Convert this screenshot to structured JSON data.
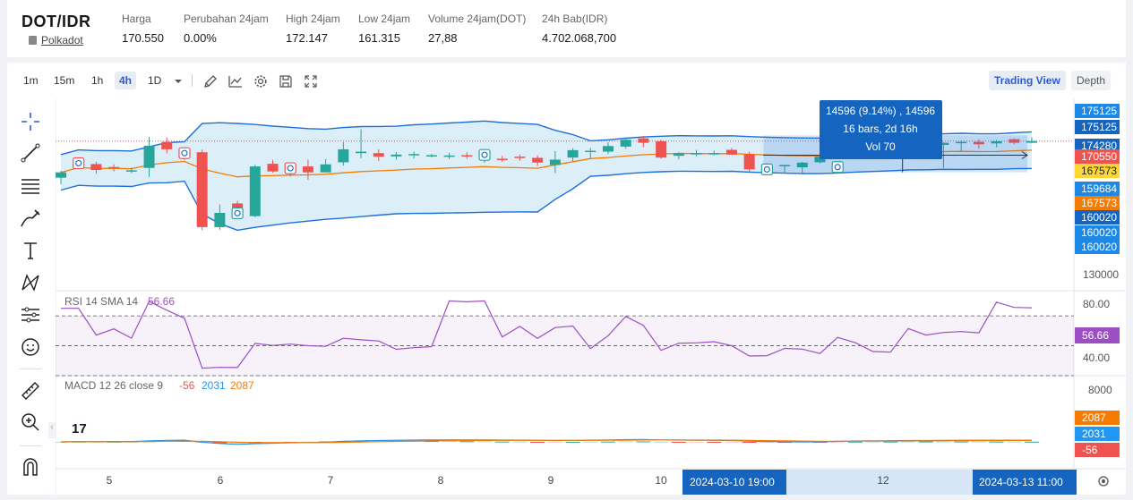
{
  "header": {
    "pair": "DOT/IDR",
    "coin_name": "Polkadot",
    "stats": [
      {
        "label": "Harga",
        "value": "170.550"
      },
      {
        "label": "Perubahan 24jam",
        "value": "0.00%"
      },
      {
        "label": "High 24jam",
        "value": "172.147"
      },
      {
        "label": "Low 24jam",
        "value": "161.315"
      },
      {
        "label": "Volume 24jam(DOT)",
        "value": "27,88"
      },
      {
        "label": "24h Bab(IDR)",
        "value": "4.702.068,700"
      }
    ]
  },
  "toolbar": {
    "timeframes": [
      "1m",
      "15m",
      "1h",
      "4h",
      "1D"
    ],
    "active_timeframe": "4h",
    "icons": [
      "chevron-down-icon",
      "pencil-icon",
      "indicator-icon",
      "settings-icon",
      "save-icon",
      "fullscreen-icon"
    ],
    "views": [
      "Trading View",
      "Depth"
    ],
    "active_view": "Trading View"
  },
  "sidebar_tools": [
    "crosshair-icon",
    "trendline-icon",
    "fib-lines-icon",
    "brush-icon",
    "text-icon",
    "pattern-icon",
    "prediction-icon",
    "emoji-icon",
    "ruler-icon",
    "zoom-in-icon",
    "magnet-icon"
  ],
  "measure_tooltip": {
    "line1": "14596 (9.14%) , 14596",
    "line2": "16 bars, 2d 16h",
    "line3": "Vol 70"
  },
  "price_axis": {
    "badges": [
      {
        "text": "175125",
        "color": "#1e88e5"
      },
      {
        "text": "175125",
        "color": "#1565c0"
      },
      {
        "text": "174280",
        "color": "#1565c0"
      },
      {
        "text": "170550",
        "color": "#ef5350"
      },
      {
        "text": "167573",
        "color": "#fdd835"
      },
      {
        "text": "159684",
        "color": "#1e88e5"
      },
      {
        "text": "167573",
        "color": "#f57c00"
      },
      {
        "text": "160020",
        "color": "#1565c0"
      },
      {
        "text": "160020",
        "color": "#1e88e5"
      },
      {
        "text": "160020",
        "color": "#1e88e5"
      }
    ],
    "tick": "130000"
  },
  "rsi": {
    "legend_name": "RSI 14 SMA 14",
    "legend_value": "56.66",
    "ticks": [
      "80.00",
      "40.00"
    ],
    "badge": "56.66"
  },
  "macd": {
    "legend_name": "MACD 12 26 close 9",
    "hist_value": "-56",
    "macd_value": "2031",
    "signal_value": "2087",
    "tick": "8000",
    "badges": [
      "2087",
      "2031",
      "-56"
    ]
  },
  "time_axis": {
    "labels": [
      "5",
      "6",
      "7",
      "8",
      "9",
      "10",
      "12"
    ],
    "range_start": "2024-03-10   19:00",
    "range_end": "2024-03-13   11:00"
  },
  "colors": {
    "up": "#26a69a",
    "down": "#ef5350",
    "band_fill": "#d6ebf7",
    "band_line": "#1e6fd9",
    "basis_line": "#f57c00",
    "rsi_line": "#9c4fc3",
    "macd_line": "#2196f3",
    "signal_line": "#f57c00",
    "accent": "#2c5bd8"
  },
  "chart_data": {
    "type": "candlestick",
    "price_range": [
      120000,
      185000
    ],
    "candles": [
      {
        "o": 158200,
        "h": 160500,
        "l": 156000,
        "c": 160000
      },
      {
        "o": 163000,
        "h": 164500,
        "l": 161800,
        "c": 163200
      },
      {
        "o": 162800,
        "h": 163600,
        "l": 159500,
        "c": 160800
      },
      {
        "o": 161800,
        "h": 162700,
        "l": 160300,
        "c": 161400
      },
      {
        "o": 160600,
        "h": 161600,
        "l": 159700,
        "c": 160700
      },
      {
        "o": 161500,
        "h": 172000,
        "l": 158500,
        "c": 169000
      },
      {
        "o": 170300,
        "h": 171800,
        "l": 166400,
        "c": 167800
      },
      {
        "o": 166600,
        "h": 167600,
        "l": 164200,
        "c": 166500
      },
      {
        "o": 166800,
        "h": 167700,
        "l": 140500,
        "c": 141500
      },
      {
        "o": 141500,
        "h": 149200,
        "l": 140600,
        "c": 146300
      },
      {
        "o": 149500,
        "h": 150400,
        "l": 145800,
        "c": 146100
      },
      {
        "o": 145200,
        "h": 162500,
        "l": 144800,
        "c": 162000
      },
      {
        "o": 162900,
        "h": 164200,
        "l": 159900,
        "c": 160300
      },
      {
        "o": 161000,
        "h": 162400,
        "l": 158600,
        "c": 161500
      },
      {
        "o": 162000,
        "h": 164300,
        "l": 157500,
        "c": 160000
      },
      {
        "o": 160000,
        "h": 164500,
        "l": 160000,
        "c": 162700
      },
      {
        "o": 163400,
        "h": 170200,
        "l": 162300,
        "c": 167800
      },
      {
        "o": 166500,
        "h": 174600,
        "l": 164800,
        "c": 167000
      },
      {
        "o": 166500,
        "h": 167800,
        "l": 163800,
        "c": 165300
      },
      {
        "o": 165400,
        "h": 166800,
        "l": 164300,
        "c": 166000
      },
      {
        "o": 166200,
        "h": 167000,
        "l": 164700,
        "c": 166200
      },
      {
        "o": 165700,
        "h": 166200,
        "l": 165100,
        "c": 165800
      },
      {
        "o": 165500,
        "h": 166600,
        "l": 164500,
        "c": 165700
      },
      {
        "o": 165800,
        "h": 166800,
        "l": 164600,
        "c": 165400
      },
      {
        "o": 165700,
        "h": 167800,
        "l": 163200,
        "c": 166000
      },
      {
        "o": 164600,
        "h": 165600,
        "l": 163600,
        "c": 164200
      },
      {
        "o": 165300,
        "h": 166000,
        "l": 163900,
        "c": 164900
      },
      {
        "o": 164900,
        "h": 165700,
        "l": 162200,
        "c": 163300
      },
      {
        "o": 162500,
        "h": 167200,
        "l": 159800,
        "c": 164300
      },
      {
        "o": 165000,
        "h": 168200,
        "l": 163700,
        "c": 167500
      },
      {
        "o": 167000,
        "h": 168300,
        "l": 164800,
        "c": 167300
      },
      {
        "o": 167000,
        "h": 170200,
        "l": 166200,
        "c": 168900
      },
      {
        "o": 168700,
        "h": 171800,
        "l": 168000,
        "c": 171000
      },
      {
        "o": 171500,
        "h": 172300,
        "l": 168500,
        "c": 170000
      },
      {
        "o": 170500,
        "h": 171000,
        "l": 164600,
        "c": 165000
      },
      {
        "o": 165600,
        "h": 166800,
        "l": 164400,
        "c": 166500
      },
      {
        "o": 166500,
        "h": 167600,
        "l": 165400,
        "c": 166500
      },
      {
        "o": 166300,
        "h": 167400,
        "l": 165700,
        "c": 166500
      },
      {
        "o": 167600,
        "h": 168200,
        "l": 165900,
        "c": 166000
      },
      {
        "o": 166100,
        "h": 167000,
        "l": 160200,
        "c": 161000
      },
      {
        "o": 161700,
        "h": 162800,
        "l": 160500,
        "c": 161800
      },
      {
        "o": 162100,
        "h": 162500,
        "l": 159700,
        "c": 162500
      },
      {
        "o": 161700,
        "h": 163600,
        "l": 159800,
        "c": 163300
      },
      {
        "o": 163400,
        "h": 165300,
        "l": 163000,
        "c": 165300
      },
      {
        "o": 165500,
        "h": 171300,
        "l": 165200,
        "c": 170200
      },
      {
        "o": 170000,
        "h": 172000,
        "l": 168900,
        "c": 169900
      },
      {
        "o": 169900,
        "h": 170700,
        "l": 168400,
        "c": 169200
      },
      {
        "o": 169200,
        "h": 171300,
        "l": 167800,
        "c": 168000
      },
      {
        "o": 168200,
        "h": 170200,
        "l": 166800,
        "c": 169600
      },
      {
        "o": 169800,
        "h": 170500,
        "l": 168500,
        "c": 169200
      },
      {
        "o": 169300,
        "h": 170200,
        "l": 161500,
        "c": 170000
      },
      {
        "o": 170000,
        "h": 170800,
        "l": 167200,
        "c": 170300
      },
      {
        "o": 170300,
        "h": 171200,
        "l": 168000,
        "c": 169500
      },
      {
        "o": 169800,
        "h": 171000,
        "l": 168500,
        "c": 170500
      },
      {
        "o": 171200,
        "h": 171500,
        "l": 169500,
        "c": 170000
      },
      {
        "o": 170000,
        "h": 171800,
        "l": 169800,
        "c": 170550
      }
    ]
  }
}
